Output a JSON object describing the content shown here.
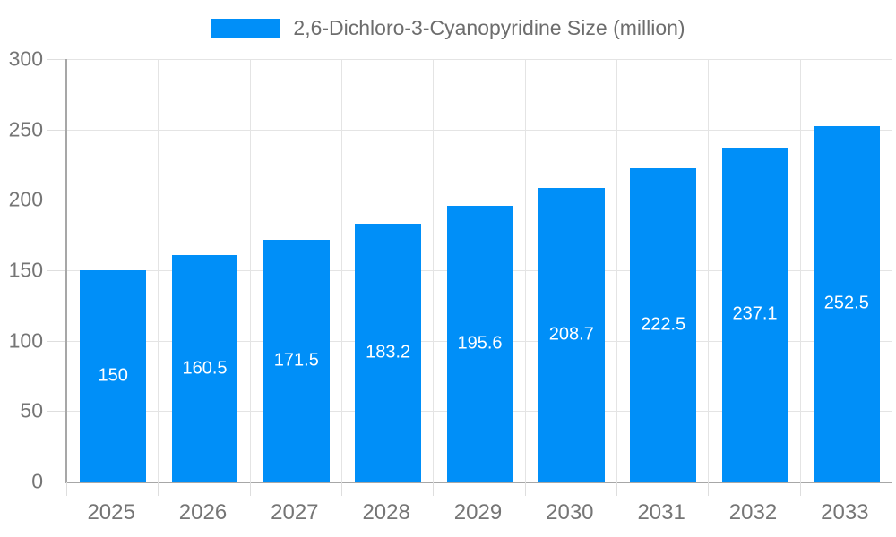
{
  "chart_data": {
    "type": "bar",
    "title": "2,6-Dichloro-3-Cyanopyridine Size (million)",
    "series_name": "2,6-Dichloro-3-Cyanopyridine Size (million)",
    "categories": [
      "2025",
      "2026",
      "2027",
      "2028",
      "2029",
      "2030",
      "2031",
      "2032",
      "2033"
    ],
    "values": [
      150,
      160.5,
      171.5,
      183.2,
      195.6,
      208.7,
      222.5,
      237.1,
      252.5
    ],
    "value_labels": [
      "150",
      "160.5",
      "171.5",
      "183.2",
      "195.6",
      "208.7",
      "222.5",
      "237.1",
      "252.5"
    ],
    "xlabel": "",
    "ylabel": "",
    "ylim": [
      0,
      300
    ],
    "y_ticks": [
      0,
      50,
      100,
      150,
      200,
      250,
      300
    ],
    "y_tick_labels": [
      "0",
      "50",
      "100",
      "150",
      "200",
      "250",
      "300"
    ],
    "grid": true,
    "legend_position": "top-center",
    "bar_width_fraction": 0.72,
    "colors": {
      "bar": "#008FF8",
      "bar_label": "#ffffff",
      "axis_line": "#a7a7a7",
      "grid_line": "#e4e4e4",
      "tick_line": "#dedede",
      "axis_text": "#757575",
      "legend_text": "#6d6d6d",
      "background": "#ffffff"
    }
  }
}
